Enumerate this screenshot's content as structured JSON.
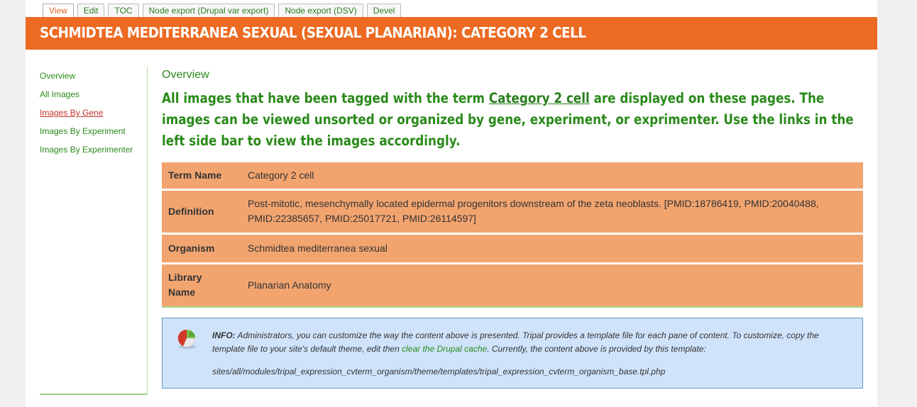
{
  "tabs": [
    "View",
    "Edit",
    "TOC",
    "Node export (Drupal var export)",
    "Node export (DSV)",
    "Devel"
  ],
  "page_title": "SCHMIDTEA MEDITERRANEA SEXUAL (SEXUAL PLANARIAN): CATEGORY 2 CELL",
  "sidebar": {
    "items": [
      "Overview",
      "All Images",
      "Images By Gene",
      "Images By Experiment",
      "Images By Experimenter"
    ],
    "active_item": "Images By Gene"
  },
  "main": {
    "pane_title": "Overview",
    "intro_before": "All images that have been tagged with the term ",
    "intro_link": "Category 2 cell",
    "intro_after": " are displayed on these pages. The images can be viewed unsorted or organized by gene, experiment, or exprimenter. Use the links in the left side bar to view the images accordingly."
  },
  "details": [
    {
      "label": "Term Name",
      "value": "Category 2 cell"
    },
    {
      "label": "Definition",
      "value": "Post-mitotic, mesenchymally located epidermal progenitors downstream of the zeta neoblasts. [PMID:18786419, PMID:20040488, PMID:22385657, PMID:25017721, PMID:26114597]"
    },
    {
      "label": "Organism",
      "value": "Schmidtea mediterranea sexual"
    },
    {
      "label": "Library Name",
      "value": "Planarian Anatomy"
    }
  ],
  "info": {
    "label": "INFO:",
    "text_before": " Administrators, you can customize the way the content above is presented. Tripal provides a template file for each pane of content. To customize, copy the template file to your site's default theme, edit then ",
    "link": "clear the Drupal cache",
    "text_after": ". Currently, the content above is provided by this template:",
    "path": "sites/all/modules/tripal_expression_cvterm_organism/theme/templates/tripal_expression_cvterm_organism_base.tpl.php",
    "icon": "tripal-info-icon"
  },
  "colors": {
    "title_bar": "#ec6a21",
    "table_row": "#f2a46f",
    "green_text": "#2a8a1a",
    "info_bg": "#cfe3fb"
  }
}
